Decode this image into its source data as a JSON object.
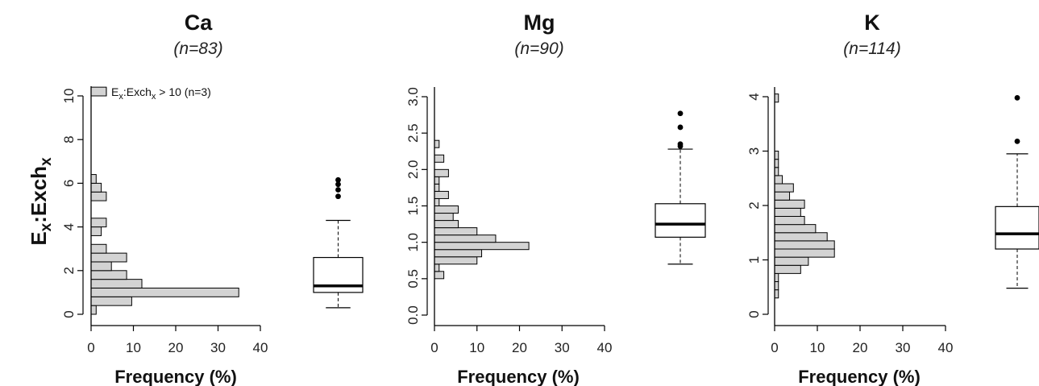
{
  "figure": {
    "ylabel": {
      "main": "E",
      "sub1": "x",
      "mid": ":Exch",
      "sub2": "x"
    },
    "xlabel": "Frequency (%)",
    "hist_fill": "#d3d3d3",
    "stroke": "#000000"
  },
  "chart_data": [
    {
      "type": "histogram_with_boxplot",
      "title": "Ca",
      "subtitle": "(n=83)",
      "xlabel": "Frequency (%)",
      "xlim": [
        0,
        40
      ],
      "xticks": [
        0,
        10,
        20,
        30,
        40
      ],
      "ylim": [
        0,
        10
      ],
      "yticks": [
        0,
        2,
        4,
        6,
        8,
        10
      ],
      "bin_width": 0.4,
      "bins": [
        {
          "y0": 0.0,
          "freq": 1.2
        },
        {
          "y0": 0.4,
          "freq": 9.6
        },
        {
          "y0": 0.8,
          "freq": 34.9
        },
        {
          "y0": 1.2,
          "freq": 12.0
        },
        {
          "y0": 1.6,
          "freq": 8.4
        },
        {
          "y0": 2.0,
          "freq": 4.8
        },
        {
          "y0": 2.4,
          "freq": 8.4
        },
        {
          "y0": 2.8,
          "freq": 3.6
        },
        {
          "y0": 3.6,
          "freq": 2.4
        },
        {
          "y0": 4.0,
          "freq": 3.6
        },
        {
          "y0": 5.2,
          "freq": 3.6
        },
        {
          "y0": 5.6,
          "freq": 2.4
        },
        {
          "y0": 6.0,
          "freq": 1.2
        },
        {
          "y0": 10.0,
          "freq": 3.6
        }
      ],
      "legend": {
        "prefix": "E",
        "sub1": "x",
        "mid": ":Exch",
        "sub2": "x",
        "suffix": " > 10 (n=3)"
      },
      "boxplot": {
        "whisker_low": 0.3,
        "q1": 1.0,
        "median": 1.3,
        "q3": 2.6,
        "whisker_high": 4.3,
        "outliers": [
          5.4,
          5.7,
          5.95,
          6.15
        ]
      }
    },
    {
      "type": "histogram_with_boxplot",
      "title": "Mg",
      "subtitle": "(n=90)",
      "xlabel": "Frequency (%)",
      "xlim": [
        0,
        40
      ],
      "xticks": [
        0,
        10,
        20,
        30,
        40
      ],
      "ylim": [
        0,
        3
      ],
      "yticks": [
        0.0,
        0.5,
        1.0,
        1.5,
        2.0,
        2.5,
        3.0
      ],
      "bin_width": 0.1,
      "bins": [
        {
          "y0": 0.5,
          "freq": 2.2
        },
        {
          "y0": 0.6,
          "freq": 1.1
        },
        {
          "y0": 0.7,
          "freq": 10.0
        },
        {
          "y0": 0.8,
          "freq": 11.1
        },
        {
          "y0": 0.9,
          "freq": 22.2
        },
        {
          "y0": 1.0,
          "freq": 14.4
        },
        {
          "y0": 1.1,
          "freq": 10.0
        },
        {
          "y0": 1.2,
          "freq": 5.6
        },
        {
          "y0": 1.3,
          "freq": 4.4
        },
        {
          "y0": 1.4,
          "freq": 5.6
        },
        {
          "y0": 1.5,
          "freq": 1.1
        },
        {
          "y0": 1.6,
          "freq": 3.3
        },
        {
          "y0": 1.7,
          "freq": 1.1
        },
        {
          "y0": 1.8,
          "freq": 1.1
        },
        {
          "y0": 1.9,
          "freq": 3.3
        },
        {
          "y0": 2.1,
          "freq": 2.2
        },
        {
          "y0": 2.3,
          "freq": 1.1
        }
      ],
      "boxplot": {
        "whisker_low": 0.7,
        "q1": 1.07,
        "median": 1.25,
        "q3": 1.53,
        "whisker_high": 2.28,
        "outliers": [
          2.32,
          2.35,
          2.58,
          2.77
        ]
      }
    },
    {
      "type": "histogram_with_boxplot",
      "title": "K",
      "subtitle": "(n=114)",
      "xlabel": "Frequency (%)",
      "xlim": [
        0,
        40
      ],
      "xticks": [
        0,
        10,
        20,
        30,
        40
      ],
      "ylim": [
        0,
        4
      ],
      "yticks": [
        0,
        1,
        2,
        3,
        4
      ],
      "bin_width": 0.15,
      "bins": [
        {
          "y0": 0.3,
          "freq": 0.9
        },
        {
          "y0": 0.45,
          "freq": 0.9
        },
        {
          "y0": 0.6,
          "freq": 0.9
        },
        {
          "y0": 0.75,
          "freq": 6.1
        },
        {
          "y0": 0.9,
          "freq": 7.9
        },
        {
          "y0": 1.05,
          "freq": 14.0
        },
        {
          "y0": 1.2,
          "freq": 14.0
        },
        {
          "y0": 1.35,
          "freq": 12.3
        },
        {
          "y0": 1.5,
          "freq": 9.6
        },
        {
          "y0": 1.65,
          "freq": 7.0
        },
        {
          "y0": 1.8,
          "freq": 6.1
        },
        {
          "y0": 1.95,
          "freq": 7.0
        },
        {
          "y0": 2.1,
          "freq": 3.5
        },
        {
          "y0": 2.25,
          "freq": 4.4
        },
        {
          "y0": 2.4,
          "freq": 1.8
        },
        {
          "y0": 2.55,
          "freq": 0.9
        },
        {
          "y0": 2.7,
          "freq": 0.9
        },
        {
          "y0": 2.85,
          "freq": 0.9
        },
        {
          "y0": 3.9,
          "freq": 0.9
        }
      ],
      "boxplot": {
        "whisker_low": 0.48,
        "q1": 1.2,
        "median": 1.48,
        "q3": 1.98,
        "whisker_high": 2.95,
        "outliers": [
          3.18,
          3.98
        ]
      }
    }
  ]
}
